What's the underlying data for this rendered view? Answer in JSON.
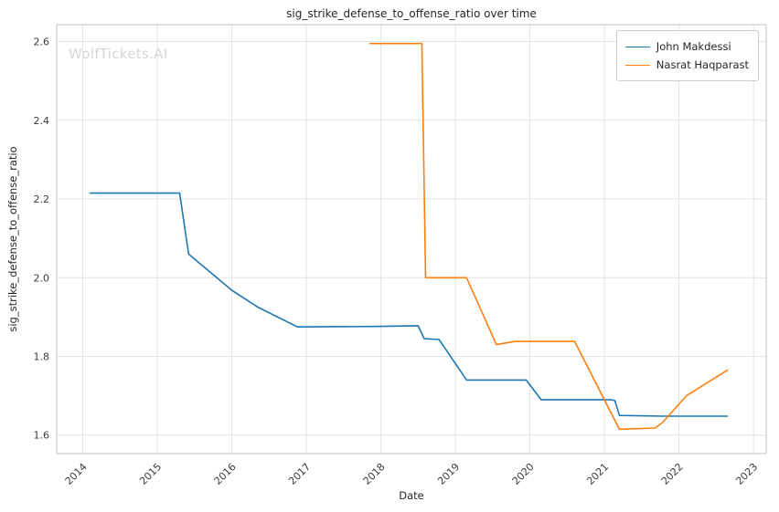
{
  "watermark": "WolfTickets.AI",
  "chart_data": {
    "type": "line",
    "title": "sig_strike_defense_to_offense_ratio over time",
    "xlabel": "Date",
    "ylabel": "sig_strike_defense_to_offense_ratio",
    "xlim": [
      2013.65,
      2023.17
    ],
    "ylim": [
      1.553,
      2.643
    ],
    "x_ticks": [
      2014,
      2015,
      2016,
      2017,
      2018,
      2019,
      2020,
      2021,
      2022,
      2023
    ],
    "y_ticks": [
      "1.6",
      "1.8",
      "2.0",
      "2.2",
      "2.4",
      "2.6"
    ],
    "grid": true,
    "legend_position": "top-right",
    "colors": {
      "grid": "#e3e3e3",
      "border": "#cccccc",
      "tick_text": "#3b3b3b"
    },
    "series": [
      {
        "name": "John Makdessi",
        "color": "#1f77b4",
        "points": [
          [
            2014.1,
            2.215
          ],
          [
            2015.3,
            2.215
          ],
          [
            2015.42,
            2.06
          ],
          [
            2016.0,
            1.968
          ],
          [
            2016.35,
            1.925
          ],
          [
            2016.88,
            1.875
          ],
          [
            2017.9,
            1.876
          ],
          [
            2018.5,
            1.878
          ],
          [
            2018.58,
            1.845
          ],
          [
            2018.78,
            1.843
          ],
          [
            2019.15,
            1.74
          ],
          [
            2019.95,
            1.74
          ],
          [
            2020.15,
            1.69
          ],
          [
            2021.08,
            1.69
          ],
          [
            2021.14,
            1.688
          ],
          [
            2021.2,
            1.65
          ],
          [
            2021.8,
            1.648
          ],
          [
            2022.65,
            1.648
          ]
        ]
      },
      {
        "name": "Nasrat Haqparast",
        "color": "#ff7f0e",
        "points": [
          [
            2017.85,
            2.595
          ],
          [
            2018.55,
            2.595
          ],
          [
            2018.6,
            2.0
          ],
          [
            2019.15,
            2.0
          ],
          [
            2019.55,
            1.83
          ],
          [
            2019.8,
            1.838
          ],
          [
            2020.6,
            1.838
          ],
          [
            2021.2,
            1.615
          ],
          [
            2021.68,
            1.618
          ],
          [
            2021.78,
            1.632
          ],
          [
            2022.1,
            1.7
          ],
          [
            2022.65,
            1.765
          ]
        ]
      }
    ]
  }
}
